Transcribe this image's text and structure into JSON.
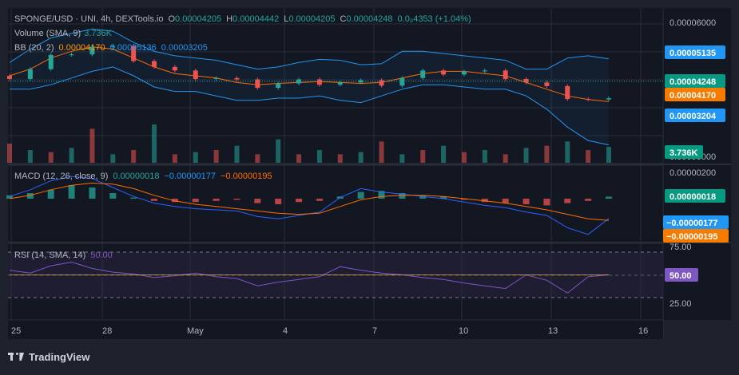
{
  "header": {
    "symbol": "SPONGE/USD · UNI, 4h, DEXTools.io",
    "open_label": "O",
    "open": "0.00004205",
    "high_label": "H",
    "high": "0.00004442",
    "low_label": "L",
    "low": "0.00004205",
    "close_label": "C",
    "close": "0.00004248",
    "change": "0.0₉4353 (+1.04%)",
    "volume_label": "Volume (SMA, 9)",
    "volume_value": "3.736K",
    "bb_label": "BB (20, 2)",
    "bb_basis": "0.00004170",
    "bb_upper": "0.00005136",
    "bb_lower": "0.00003205",
    "macd_label": "MACD (12, 26, close, 9)",
    "macd_hist": "0.00000018",
    "macd_line": "−0.00000177",
    "macd_signal": "−0.00000195",
    "rsi_label": "RSI (14, SMA, 14)",
    "rsi_value": "50.00"
  },
  "price_axis": {
    "ticks": [
      "0.00006000",
      "0.00000000"
    ],
    "tags": {
      "upper": "0.00005135",
      "close": "0.00004248",
      "basis": "0.00004170",
      "lower": "0.00003204",
      "volume": "3.736K"
    }
  },
  "macd_axis": {
    "ticks": [
      "0.00000200"
    ],
    "tags": {
      "hist": "0.00000018",
      "macd": "−0.00000177",
      "signal": "−0.00000195"
    }
  },
  "rsi_axis": {
    "ticks": [
      "75.00",
      "25.00"
    ],
    "tags": {
      "rsi": "50.00"
    }
  },
  "time_axis": {
    "labels": [
      "25",
      "28",
      "May",
      "4",
      "7",
      "10",
      "13",
      "16"
    ]
  },
  "colors": {
    "background": "#1e222d",
    "up": "#26a69a",
    "down": "#ef5350",
    "bb_band": "#2196f3",
    "bb_basis": "#ff6d00",
    "macd_line": "#2962ff",
    "signal_line": "#ff6d00",
    "rsi_line": "#7e57c2",
    "axis_tag_blue": "#2196f3",
    "axis_tag_green": "#089981",
    "axis_tag_orange": "#f57c00"
  },
  "footer": {
    "brand": "TradingView"
  },
  "chart_data": [
    {
      "type": "candlestick",
      "title": "SPONGE/USD",
      "ylim": [
        2.8e-05,
        6.2e-05
      ],
      "bollinger": {
        "period": 20,
        "stddev": 2
      },
      "series": [
        {
          "name": "BB upper",
          "values": [
            5.05e-05,
            5.35e-05,
            5.6e-05,
            5.7e-05,
            5.8e-05,
            5.75e-05,
            5.5e-05,
            5.3e-05,
            5.2e-05,
            5.15e-05,
            5.1e-05,
            5e-05,
            4.9e-05,
            4.95e-05,
            5.05e-05,
            5.12e-05,
            5.1e-05,
            5e-05,
            5.02e-05,
            5.3e-05,
            5.3e-05,
            5.25e-05,
            5.2e-05,
            5.15e-05,
            5.1e-05,
            4.9e-05,
            4.9e-05,
            5.15e-05,
            5.2e-05,
            5.13e-05
          ]
        },
        {
          "name": "BB basis",
          "values": [
            4.75e-05,
            4.9e-05,
            5.15e-05,
            5.3e-05,
            5.4e-05,
            5.35e-05,
            5.15e-05,
            4.95e-05,
            4.8e-05,
            4.75e-05,
            4.7e-05,
            4.6e-05,
            4.55e-05,
            4.58e-05,
            4.6e-05,
            4.62e-05,
            4.6e-05,
            4.58e-05,
            4.6e-05,
            4.7e-05,
            4.8e-05,
            4.85e-05,
            4.85e-05,
            4.8e-05,
            4.75e-05,
            4.6e-05,
            4.45e-05,
            4.3e-05,
            4.22e-05,
            4.17e-05
          ]
        },
        {
          "name": "BB lower",
          "values": [
            4.45e-05,
            4.45e-05,
            4.55e-05,
            4.7e-05,
            4.85e-05,
            4.95e-05,
            4.75e-05,
            4.5e-05,
            4.4e-05,
            4.4e-05,
            4.3e-05,
            4.2e-05,
            4.2e-05,
            4.25e-05,
            4.25e-05,
            4.3e-05,
            4.2e-05,
            4.15e-05,
            4.3e-05,
            4.45e-05,
            4.55e-05,
            4.55e-05,
            4.5e-05,
            4.45e-05,
            4.45e-05,
            4.3e-05,
            4e-05,
            3.6e-05,
            3.3e-05,
            3.2e-05
          ]
        }
      ],
      "last_close": 4.248e-05
    },
    {
      "type": "bar",
      "title": "Volume (SMA, 9)",
      "values": [
        4.5,
        3.0,
        2.5,
        3.5,
        8.0,
        2.0,
        3.0,
        9.0,
        2.0,
        2.5,
        3.0,
        4.0,
        2.0,
        5.5,
        2.0,
        3.0,
        2.0,
        2.5,
        5.0,
        2.0,
        3.0,
        4.0,
        2.5,
        3.0,
        2.0,
        3.5,
        4.0,
        5.0,
        3.0,
        3.736
      ],
      "last_value": 3.736
    },
    {
      "type": "bar",
      "title": "MACD (12, 26, close, 9)",
      "series": [
        {
          "name": "Histogram",
          "values": [
            0.3,
            0.5,
            0.8,
            1.2,
            1.0,
            0.5,
            0.1,
            -0.2,
            -0.3,
            -0.3,
            -0.2,
            -0.1,
            -0.4,
            -0.5,
            -0.3,
            -0.2,
            0.2,
            0.6,
            0.7,
            0.5,
            0.3,
            0.2,
            -0.1,
            -0.3,
            -0.4,
            -0.5,
            -0.6,
            -0.4,
            -0.2,
            0.18
          ]
        },
        {
          "name": "MACD",
          "values": [
            0.2,
            0.8,
            1.6,
            2.0,
            1.8,
            1.0,
            0.2,
            -0.4,
            -0.7,
            -0.9,
            -1.0,
            -1.1,
            -1.6,
            -1.8,
            -1.5,
            -1.2,
            0.1,
            0.9,
            0.6,
            0.4,
            0.2,
            0.0,
            -0.3,
            -0.6,
            -0.8,
            -1.2,
            -1.5,
            -2.6,
            -3.2,
            -1.77
          ]
        },
        {
          "name": "Signal",
          "values": [
            0.0,
            0.3,
            0.8,
            1.2,
            1.4,
            1.3,
            0.9,
            0.3,
            -0.2,
            -0.5,
            -0.7,
            -0.9,
            -1.1,
            -1.3,
            -1.4,
            -1.3,
            -0.7,
            -0.1,
            0.2,
            0.3,
            0.3,
            0.2,
            0.0,
            -0.2,
            -0.4,
            -0.7,
            -1.0,
            -1.4,
            -1.8,
            -1.95
          ]
        }
      ]
    },
    {
      "type": "line",
      "title": "RSI (14, SMA, 14)",
      "ylim": [
        0,
        100
      ],
      "series": [
        {
          "name": "RSI",
          "values": [
            55,
            52,
            60,
            64,
            57,
            53,
            51,
            47,
            49,
            52,
            48,
            46,
            38,
            42,
            45,
            48,
            59,
            55,
            52,
            50,
            47,
            45,
            41,
            38,
            35,
            50,
            44,
            30,
            48,
            50
          ]
        },
        {
          "name": "RSI SMA",
          "values": [
            50,
            50,
            50,
            50,
            50,
            50,
            50,
            50,
            50,
            50,
            50,
            50,
            50,
            50,
            50,
            50,
            50,
            50,
            50,
            50,
            50,
            50,
            50,
            50,
            50,
            50,
            50,
            50,
            50,
            50
          ]
        }
      ],
      "last_value": 50.0
    }
  ]
}
